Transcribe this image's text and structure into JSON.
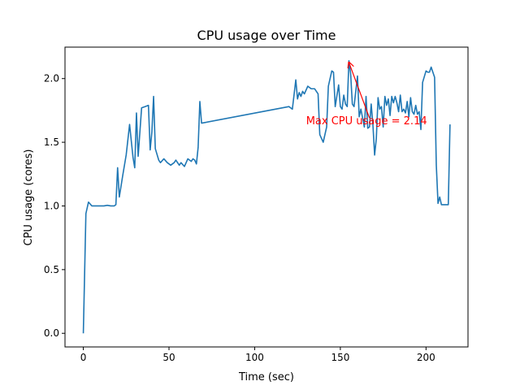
{
  "chart_data": {
    "type": "line",
    "title": "CPU usage over Time",
    "xlabel": "Time (sec)",
    "ylabel": "CPU usage (cores)",
    "xlim": [
      -10.7,
      224.5
    ],
    "ylim": [
      -0.107,
      2.247
    ],
    "xticks": [
      0,
      50,
      100,
      150,
      200
    ],
    "yticks": [
      0.0,
      0.5,
      1.0,
      1.5,
      2.0
    ],
    "xtick_labels": [
      "0",
      "50",
      "100",
      "150",
      "200"
    ],
    "ytick_labels": [
      "0.0",
      "0.5",
      "1.0",
      "1.5",
      "2.0"
    ],
    "grid": false,
    "series": [
      {
        "color": "#1f77b4",
        "x": [
          0,
          1.5,
          3,
          5,
          8,
          10,
          12,
          14,
          16,
          18,
          19,
          20,
          21,
          23,
          25,
          27,
          29,
          30,
          31,
          32,
          34,
          36,
          38,
          39,
          40,
          41,
          42,
          44,
          45,
          47,
          49,
          51,
          53,
          54,
          56,
          57,
          59,
          61,
          63,
          64,
          65,
          66,
          67,
          68,
          69,
          120,
          122,
          124,
          125,
          126,
          127,
          128,
          129,
          131,
          133,
          135,
          137,
          138,
          140,
          142,
          143,
          145,
          146,
          147,
          149,
          150,
          151,
          152,
          153,
          154,
          155,
          156,
          157,
          158,
          160,
          161,
          162,
          164,
          165,
          166,
          167,
          168,
          169,
          170,
          171,
          172,
          173,
          174,
          175,
          176,
          177,
          178,
          179,
          180,
          181,
          182,
          183,
          184,
          185,
          186,
          187,
          188,
          189,
          190,
          191,
          192,
          193,
          194,
          195,
          196,
          197,
          198,
          200,
          201,
          202,
          203,
          204,
          205,
          206,
          207,
          208,
          209,
          210,
          212,
          213,
          214
        ],
        "y": [
          0.0,
          0.94,
          1.03,
          1.0,
          1.0,
          1.0,
          1.0,
          1.005,
          1.0,
          1.0,
          1.01,
          1.3,
          1.07,
          1.24,
          1.4,
          1.64,
          1.38,
          1.3,
          1.73,
          1.39,
          1.77,
          1.78,
          1.79,
          1.44,
          1.58,
          1.86,
          1.45,
          1.36,
          1.34,
          1.37,
          1.34,
          1.32,
          1.34,
          1.36,
          1.32,
          1.34,
          1.31,
          1.37,
          1.35,
          1.37,
          1.36,
          1.33,
          1.46,
          1.82,
          1.65,
          1.78,
          1.76,
          1.99,
          1.84,
          1.89,
          1.86,
          1.9,
          1.88,
          1.94,
          1.92,
          1.92,
          1.88,
          1.56,
          1.5,
          1.62,
          1.94,
          2.06,
          2.05,
          1.78,
          1.95,
          1.78,
          1.76,
          1.87,
          1.8,
          1.78,
          2.14,
          2.04,
          1.8,
          1.78,
          2.02,
          1.7,
          1.76,
          1.62,
          1.86,
          1.61,
          1.62,
          1.8,
          1.64,
          1.4,
          1.53,
          1.85,
          1.76,
          1.78,
          1.62,
          1.86,
          1.79,
          1.84,
          1.71,
          1.86,
          1.81,
          1.86,
          1.81,
          1.74,
          1.87,
          1.74,
          1.76,
          1.73,
          1.82,
          1.7,
          1.85,
          1.74,
          1.72,
          1.79,
          1.72,
          1.74,
          1.6,
          1.97,
          2.06,
          2.05,
          2.05,
          2.09,
          2.05,
          2.01,
          1.32,
          1.02,
          1.07,
          1.01,
          1.01,
          1.01,
          1.01,
          1.64
        ]
      }
    ],
    "annotations": [
      {
        "text": "Max CPU usage = 2.14",
        "x": 130,
        "y": 1.64,
        "arrow_to": [
          155,
          2.14
        ],
        "color": "#ff0000"
      }
    ]
  }
}
